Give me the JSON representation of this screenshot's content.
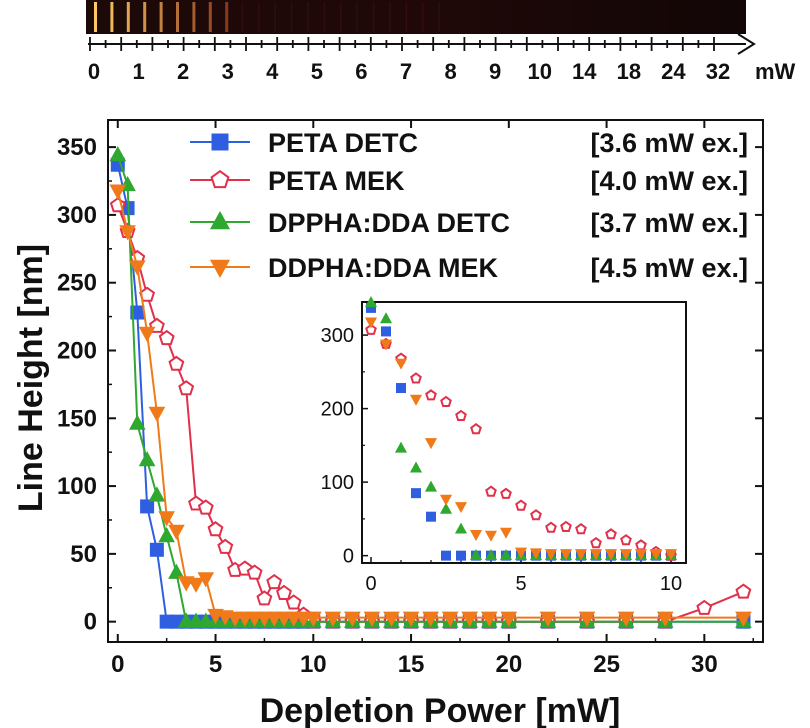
{
  "chart_data": [
    {
      "id": "main",
      "type": "line",
      "xlabel": "Depletion Power [mW]",
      "ylabel": "Line Height [nm]",
      "xlim": [
        -0.5,
        33
      ],
      "ylim": [
        -15,
        370
      ],
      "xticks": [
        0,
        5,
        10,
        15,
        20,
        25,
        30
      ],
      "yticks": [
        0,
        50,
        100,
        150,
        200,
        250,
        300,
        350
      ],
      "grid": false,
      "legend_position": "top-right",
      "series": [
        {
          "name": "PETA DETC",
          "note": "[3.6 mW ex.]",
          "color": "#2f5fe0",
          "marker": "square",
          "filled": true,
          "points": [
            [
              0,
              337
            ],
            [
              0.5,
              305
            ],
            [
              1,
              228
            ],
            [
              1.5,
              85
            ],
            [
              2,
              53
            ],
            [
              2.5,
              0
            ],
            [
              3,
              0
            ],
            [
              3.5,
              0
            ],
            [
              4,
              0
            ],
            [
              4.5,
              0
            ],
            [
              5,
              0
            ],
            [
              5.5,
              0
            ],
            [
              6,
              0
            ],
            [
              6.5,
              0
            ],
            [
              7,
              0
            ],
            [
              7.5,
              0
            ],
            [
              8,
              0
            ],
            [
              8.5,
              0
            ],
            [
              9,
              0
            ],
            [
              9.5,
              0
            ],
            [
              10,
              0
            ],
            [
              11,
              0
            ],
            [
              12,
              0
            ],
            [
              13,
              0
            ],
            [
              14,
              0
            ],
            [
              15,
              0
            ],
            [
              16,
              0
            ],
            [
              17,
              0
            ],
            [
              18,
              0
            ],
            [
              19,
              0
            ],
            [
              20,
              0
            ],
            [
              22,
              0
            ],
            [
              24,
              0
            ],
            [
              26,
              0
            ],
            [
              28,
              0
            ],
            [
              32,
              0
            ]
          ]
        },
        {
          "name": "PETA MEK",
          "note": "[4.0 mW ex.]",
          "color": "#e0304a",
          "marker": "pentagon",
          "filled": false,
          "points": [
            [
              0,
              307
            ],
            [
              0.5,
              288
            ],
            [
              1,
              268
            ],
            [
              1.5,
              241
            ],
            [
              2,
              218
            ],
            [
              2.5,
              209
            ],
            [
              3,
              190
            ],
            [
              3.5,
              172
            ],
            [
              4,
              87
            ],
            [
              4.5,
              84
            ],
            [
              5,
              68
            ],
            [
              5.5,
              55
            ],
            [
              6,
              38
            ],
            [
              6.5,
              39
            ],
            [
              7,
              36
            ],
            [
              7.5,
              17
            ],
            [
              8,
              29
            ],
            [
              8.5,
              21
            ],
            [
              9,
              14
            ],
            [
              9.5,
              5
            ],
            [
              10,
              0
            ],
            [
              11,
              0
            ],
            [
              12,
              0
            ],
            [
              13,
              0
            ],
            [
              14,
              0
            ],
            [
              15,
              0
            ],
            [
              16,
              0
            ],
            [
              17,
              0
            ],
            [
              18,
              0
            ],
            [
              19,
              0
            ],
            [
              20,
              0
            ],
            [
              22,
              0
            ],
            [
              24,
              0
            ],
            [
              26,
              0
            ],
            [
              28,
              0
            ],
            [
              30,
              10
            ],
            [
              32,
              22
            ]
          ]
        },
        {
          "name": "DPPHA:DDA DETC",
          "note": "[3.7 mW ex.]",
          "color": "#2ea82e",
          "marker": "triangle-up",
          "filled": true,
          "points": [
            [
              0,
              344
            ],
            [
              0.5,
              322
            ],
            [
              1,
              146
            ],
            [
              1.5,
              119
            ],
            [
              2,
              93
            ],
            [
              2.5,
              63
            ],
            [
              3,
              36
            ],
            [
              3.5,
              0
            ],
            [
              4,
              0
            ],
            [
              4.5,
              0
            ],
            [
              5,
              0
            ],
            [
              5.5,
              0
            ],
            [
              6,
              0
            ],
            [
              6.5,
              0
            ],
            [
              7,
              0
            ],
            [
              7.5,
              0
            ],
            [
              8,
              0
            ],
            [
              8.5,
              0
            ],
            [
              9,
              0
            ],
            [
              9.5,
              0
            ],
            [
              10,
              0
            ],
            [
              11,
              0
            ],
            [
              12,
              0
            ],
            [
              13,
              0
            ],
            [
              14,
              0
            ],
            [
              15,
              0
            ],
            [
              16,
              0
            ],
            [
              17,
              0
            ],
            [
              18,
              0
            ],
            [
              19,
              0
            ],
            [
              20,
              0
            ],
            [
              22,
              0
            ],
            [
              24,
              0
            ],
            [
              26,
              0
            ],
            [
              28,
              0
            ],
            [
              32,
              0
            ]
          ]
        },
        {
          "name": "DDPHA:DDA MEK",
          "note": "[4.5 mW ex.]",
          "color": "#f07a1a",
          "marker": "triangle-down",
          "filled": true,
          "points": [
            [
              0,
              318
            ],
            [
              0.5,
              288
            ],
            [
              1,
              262
            ],
            [
              1.5,
              213
            ],
            [
              2,
              154
            ],
            [
              2.5,
              77
            ],
            [
              3,
              67
            ],
            [
              3.5,
              29
            ],
            [
              4,
              28
            ],
            [
              4.5,
              32
            ],
            [
              5,
              5
            ],
            [
              5.5,
              4
            ],
            [
              6,
              3
            ],
            [
              6.5,
              3
            ],
            [
              7,
              3
            ],
            [
              7.5,
              3
            ],
            [
              8,
              3
            ],
            [
              8.5,
              3
            ],
            [
              9,
              3
            ],
            [
              9.5,
              3
            ],
            [
              10,
              3
            ],
            [
              11,
              3
            ],
            [
              12,
              3
            ],
            [
              13,
              3
            ],
            [
              14,
              3
            ],
            [
              15,
              3
            ],
            [
              16,
              3
            ],
            [
              17,
              3
            ],
            [
              18,
              3
            ],
            [
              19,
              3
            ],
            [
              20,
              3
            ],
            [
              22,
              3
            ],
            [
              24,
              3
            ],
            [
              26,
              3
            ],
            [
              28,
              3
            ],
            [
              32,
              3
            ]
          ]
        }
      ]
    },
    {
      "id": "inset",
      "type": "scatter",
      "xlim": [
        -0.3,
        10.5
      ],
      "ylim": [
        -10,
        345
      ],
      "xticks": [
        0,
        5,
        10
      ],
      "yticks": [
        0,
        100,
        200,
        300
      ],
      "series_from": "main",
      "x_max": 10
    },
    {
      "id": "strip",
      "type": "scale",
      "unit": "mW",
      "labels": [
        "0",
        "1",
        "2",
        "3",
        "4",
        "5",
        "6",
        "7",
        "8",
        "9",
        "10",
        "14",
        "18",
        "24",
        "32"
      ]
    }
  ]
}
